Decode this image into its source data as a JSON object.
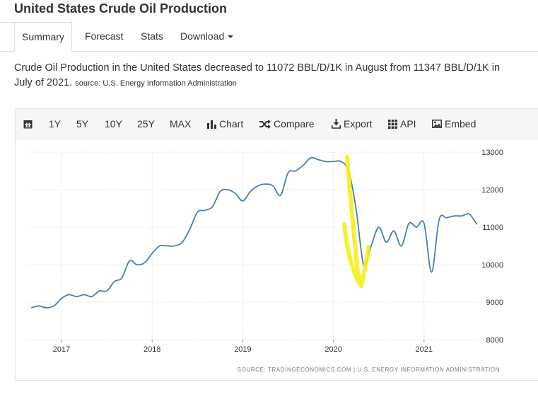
{
  "page": {
    "title": "United States Crude Oil Production"
  },
  "tabs": [
    {
      "label": "Summary",
      "active": true
    },
    {
      "label": "Forecast"
    },
    {
      "label": "Stats"
    },
    {
      "label": "Download"
    }
  ],
  "summary": {
    "line1": "Crude Oil Production in the United States decreased to 11072 BBL/D/1K in August from 11347 BBL/D/1K in",
    "line2": "July of 2021.",
    "source": "source: U.S. Energy Information Administration"
  },
  "toolbar": {
    "calendar_icon": "calendar-icon",
    "ranges": [
      "1Y",
      "5Y",
      "10Y",
      "25Y",
      "MAX"
    ],
    "chart": "Chart",
    "compare": "Compare",
    "export": "Export",
    "api": "API",
    "embed": "Embed"
  },
  "chart_data": {
    "type": "line",
    "x_ticks": [
      "2017",
      "2018",
      "2019",
      "2020",
      "2021"
    ],
    "y_ticks": [
      "13000",
      "12000",
      "11000",
      "10000",
      "9000",
      "8000"
    ],
    "ylim": [
      8000,
      13000
    ],
    "grid": true,
    "line_color": "#4a7eaa",
    "source_note": "SOURCE: TRADINGECONOMICS.COM  |  U.S. ENERGY INFORMATION ADMINISTRATION",
    "annotation": "hand-drawn yellow check mark over the 2020 drop",
    "annotation_color": "#f5ee1a",
    "series": [
      {
        "points": [
          [
            "2016-09",
            8850
          ],
          [
            "2016-10",
            8900
          ],
          [
            "2016-11",
            8850
          ],
          [
            "2016-12",
            8900
          ],
          [
            "2017-01",
            9100
          ],
          [
            "2017-02",
            9200
          ],
          [
            "2017-03",
            9150
          ],
          [
            "2017-04",
            9200
          ],
          [
            "2017-05",
            9150
          ],
          [
            "2017-06",
            9300
          ],
          [
            "2017-07",
            9300
          ],
          [
            "2017-08",
            9550
          ],
          [
            "2017-09",
            9650
          ],
          [
            "2017-10",
            10100
          ],
          [
            "2017-11",
            10000
          ],
          [
            "2017-12",
            10050
          ],
          [
            "2018-01",
            10300
          ],
          [
            "2018-02",
            10500
          ],
          [
            "2018-03",
            10500
          ],
          [
            "2018-04",
            10500
          ],
          [
            "2018-05",
            10600
          ],
          [
            "2018-06",
            10950
          ],
          [
            "2018-07",
            11400
          ],
          [
            "2018-08",
            11450
          ],
          [
            "2018-09",
            11550
          ],
          [
            "2018-10",
            11950
          ],
          [
            "2018-11",
            12000
          ],
          [
            "2018-12",
            11900
          ],
          [
            "2019-01",
            11700
          ],
          [
            "2019-02",
            11950
          ],
          [
            "2019-03",
            12100
          ],
          [
            "2019-04",
            12150
          ],
          [
            "2019-05",
            12100
          ],
          [
            "2019-06",
            11850
          ],
          [
            "2019-07",
            12450
          ],
          [
            "2019-08",
            12500
          ],
          [
            "2019-09",
            12650
          ],
          [
            "2019-10",
            12850
          ],
          [
            "2019-11",
            12800
          ],
          [
            "2019-12",
            12750
          ],
          [
            "2020-01",
            12750
          ],
          [
            "2020-02",
            12750
          ],
          [
            "2020-03",
            12500
          ],
          [
            "2020-04",
            11500
          ],
          [
            "2020-05",
            10000
          ],
          [
            "2020-06",
            10500
          ],
          [
            "2020-07",
            11000
          ],
          [
            "2020-08",
            10600
          ],
          [
            "2020-09",
            10900
          ],
          [
            "2020-10",
            10500
          ],
          [
            "2020-11",
            11100
          ],
          [
            "2020-12",
            11000
          ],
          [
            "2021-01",
            11100
          ],
          [
            "2021-02",
            9800
          ],
          [
            "2021-03",
            11200
          ],
          [
            "2021-04",
            11250
          ],
          [
            "2021-05",
            11300
          ],
          [
            "2021-06",
            11300
          ],
          [
            "2021-07",
            11347
          ],
          [
            "2021-08",
            11072
          ]
        ]
      }
    ]
  }
}
